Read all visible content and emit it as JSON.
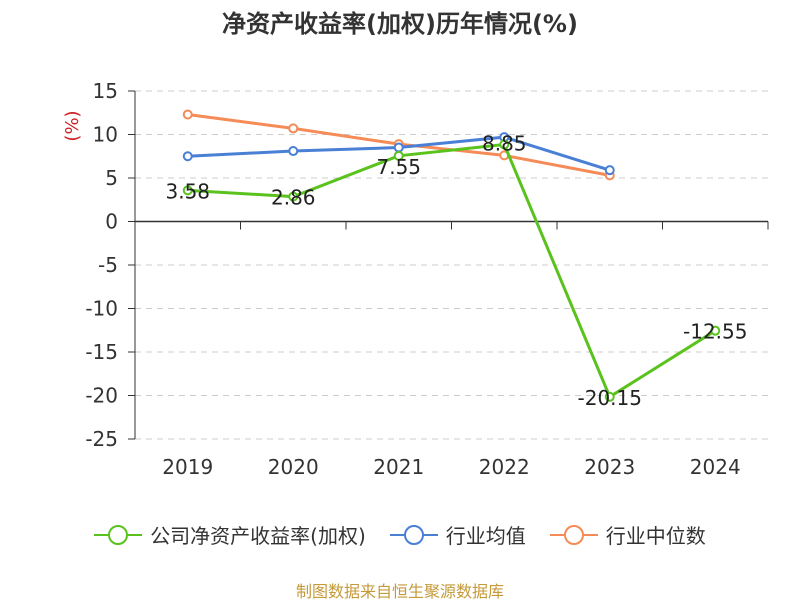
{
  "title": "净资产收益率(加权)历年情况(%)",
  "source": "制图数据来自恒生聚源数据库",
  "chart_data": {
    "type": "line",
    "title": "净资产收益率(加权)历年情况(%)",
    "xlabel": "",
    "ylabel": "(%)",
    "ylim": [
      -25,
      15
    ],
    "yticks": [
      15,
      10,
      5,
      0,
      -5,
      -10,
      -15,
      -20,
      -25
    ],
    "ytick_labels": [
      "15",
      "10",
      "5",
      "0",
      "-5",
      "-10",
      "-15",
      "-20",
      "-25"
    ],
    "categories": [
      "2019",
      "2020",
      "2021",
      "2022",
      "2023",
      "2024"
    ],
    "grid": true,
    "legend": "bottom",
    "series": [
      {
        "name": "公司净资产收益率(加权)",
        "color": "#5ac21d",
        "values": [
          3.58,
          2.86,
          7.55,
          8.85,
          -20.15,
          -12.55
        ],
        "labels": [
          "3.58",
          "2.86",
          "7.55",
          "8.85",
          "-20.15",
          "-12.55"
        ]
      },
      {
        "name": "行业均值",
        "color": "#4a7fd6",
        "values": [
          7.5,
          8.1,
          8.5,
          9.7,
          5.9,
          null
        ],
        "labels": null
      },
      {
        "name": "行业中位数",
        "color": "#f58b57",
        "values": [
          12.3,
          10.7,
          8.9,
          7.6,
          5.3,
          null
        ],
        "labels": null
      }
    ]
  }
}
